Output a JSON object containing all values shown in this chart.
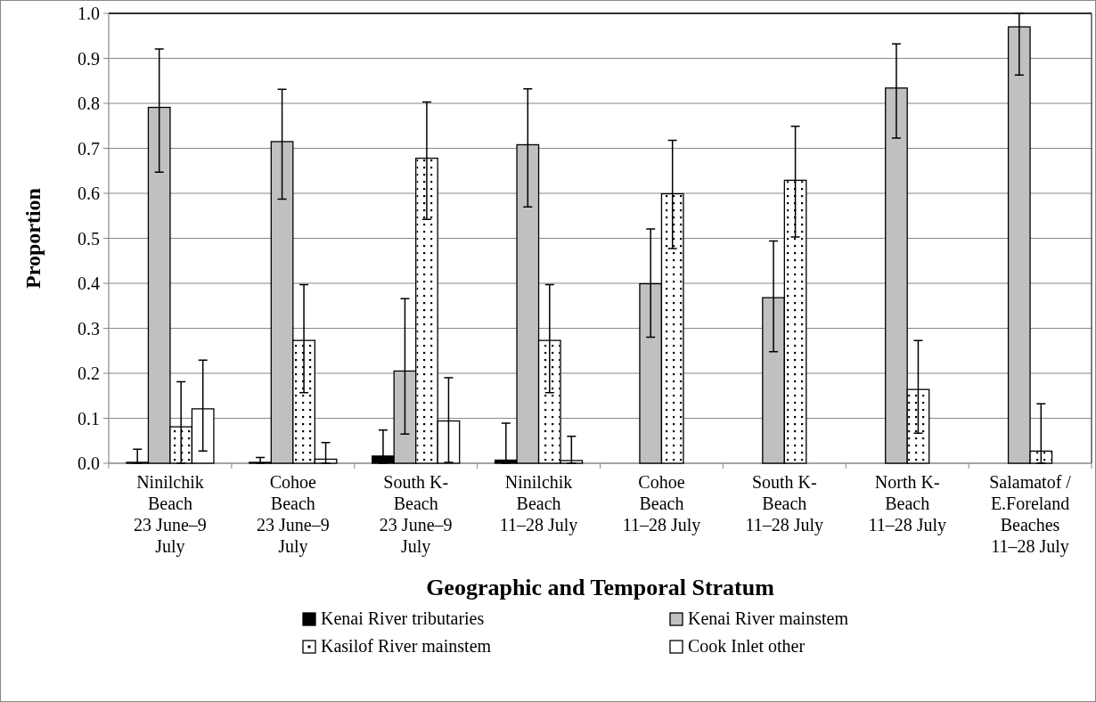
{
  "chart_data": {
    "type": "bar",
    "xlabel": "Geographic and Temporal Stratum",
    "ylabel": "Proportion",
    "categories": [
      "Ninilchik Beach\n23 June–9 July",
      "Cohoe Beach\n23 June–9 July",
      "South K-Beach\n23 June–9 July",
      "Ninilchik Beach\n11–28 July",
      "Cohoe Beach\n11–28 July",
      "South K-Beach\n11–28 July",
      "North K-Beach\n11–28 July",
      "Salamatof / E.Foreland Beaches\n11–28 July"
    ],
    "series": [
      {
        "name": "Kenai River tributaries",
        "color": "#000000",
        "values": [
          0.002,
          0.002,
          0.016,
          0.007,
          0,
          0,
          0,
          0
        ],
        "errors": [
          [
            0,
            0.031
          ],
          [
            0,
            0.013
          ],
          [
            0,
            0.074
          ],
          [
            0,
            0.089
          ],
          null,
          null,
          null,
          null
        ]
      },
      {
        "name": "Kenai River mainstem",
        "color": "#c0c0c0",
        "values": [
          0.791,
          0.715,
          0.205,
          0.708,
          0.399,
          0.368,
          0.834,
          0.97
        ],
        "errors": [
          [
            0.647,
            0.921
          ],
          [
            0.587,
            0.831
          ],
          [
            0.065,
            0.366
          ],
          [
            0.57,
            0.832
          ],
          [
            0.28,
            0.521
          ],
          [
            0.248,
            0.494
          ],
          [
            0.723,
            0.932
          ],
          [
            0.863,
            1.0
          ]
        ]
      },
      {
        "name": "Kasilof River mainstem",
        "color": "#ffffff",
        "values": [
          0.081,
          0.273,
          0.678,
          0.273,
          0.599,
          0.629,
          0.164,
          0.027
        ],
        "errors": [
          [
            0,
            0.181
          ],
          [
            0.157,
            0.397
          ],
          [
            0.542,
            0.803
          ],
          [
            0.157,
            0.397
          ],
          [
            0.477,
            0.718
          ],
          [
            0.503,
            0.749
          ],
          [
            0.067,
            0.273
          ],
          [
            0,
            0.132
          ]
        ]
      },
      {
        "name": "Cook Inlet other",
        "color": "#ffffff",
        "values": [
          0.121,
          0.009,
          0.094,
          0.006,
          0,
          0,
          0,
          0
        ],
        "errors": [
          [
            0.027,
            0.229
          ],
          [
            0,
            0.046
          ],
          [
            0.002,
            0.19
          ],
          [
            0,
            0.06
          ],
          null,
          null,
          null,
          null
        ]
      }
    ],
    "ylim": [
      0,
      1
    ],
    "yticks": [
      {
        "value": 0,
        "label": "0.0"
      },
      0.1,
      0.2,
      0.3,
      0.4,
      0.5,
      0.6,
      0.7,
      0.8,
      0.9,
      {
        "value": 1,
        "label": "1.0"
      }
    ],
    "grid": "y",
    "legend": "bottom"
  }
}
